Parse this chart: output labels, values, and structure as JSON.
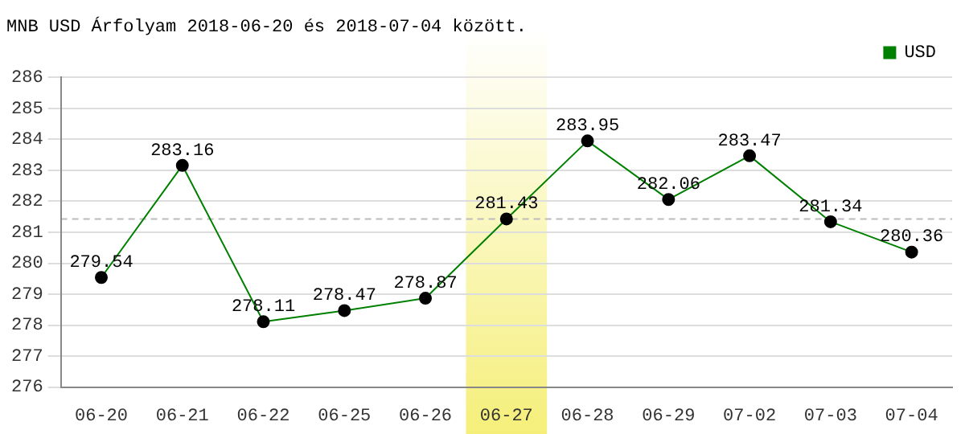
{
  "chart_data": {
    "type": "line",
    "title": "MNB USD Árfolyam 2018-06-20 és 2018-07-04 között.",
    "categories": [
      "06-20",
      "06-21",
      "06-22",
      "06-25",
      "06-26",
      "06-27",
      "06-28",
      "06-29",
      "07-02",
      "07-03",
      "07-04"
    ],
    "series": [
      {
        "name": "USD",
        "color": "#008000",
        "values": [
          279.54,
          283.16,
          278.11,
          278.47,
          278.87,
          281.43,
          283.95,
          282.06,
          283.47,
          281.34,
          280.36
        ]
      }
    ],
    "ylim": [
      276,
      286
    ],
    "yticks": [
      276,
      277,
      278,
      279,
      280,
      281,
      282,
      283,
      284,
      285,
      286
    ],
    "grid": "y",
    "legend": "top right",
    "marker": "circle",
    "line_style": "solid",
    "data_labels": true,
    "ref_lines": [
      {
        "axis": "y",
        "value": 281.43,
        "color": "#bbbbbb",
        "line_style": "dashed"
      }
    ],
    "bands": [
      {
        "axis": "x",
        "from": "06-27",
        "to": "06-27",
        "color": "#f5ef7a"
      }
    ]
  }
}
